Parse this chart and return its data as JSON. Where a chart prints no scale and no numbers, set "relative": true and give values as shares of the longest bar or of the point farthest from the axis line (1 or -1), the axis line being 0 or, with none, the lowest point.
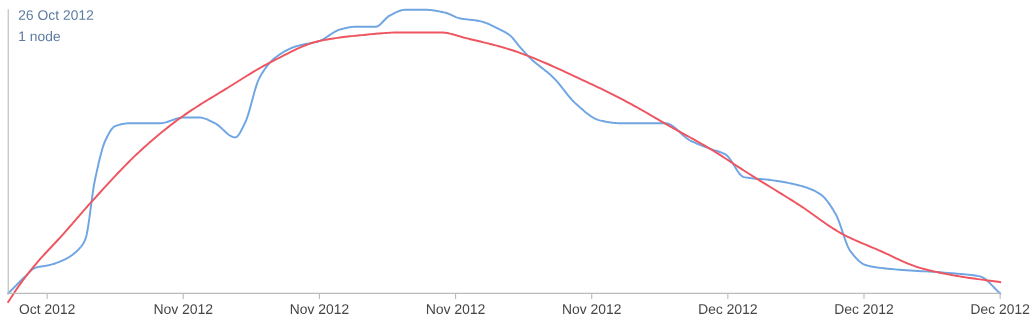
{
  "chart_data": {
    "type": "line",
    "relative": true,
    "annotations": [
      "26 Oct 2012",
      "1 node"
    ],
    "xlim": [
      "2012-10-26",
      "2012-12-16"
    ],
    "xticks": [
      {
        "value": "2012-10-28",
        "label": "Oct 2012"
      },
      {
        "value": "2012-11-04",
        "label": "Nov 2012"
      },
      {
        "value": "2012-11-11",
        "label": "Nov 2012"
      },
      {
        "value": "2012-11-18",
        "label": "Nov 2012"
      },
      {
        "value": "2012-11-25",
        "label": "Nov 2012"
      },
      {
        "value": "2012-12-02",
        "label": "Dec 2012"
      },
      {
        "value": "2012-12-09",
        "label": "Dec 2012"
      },
      {
        "value": "2012-12-16",
        "label": "Dec 2012"
      }
    ],
    "grid": false,
    "legend": false,
    "marker": "none",
    "line_style": "solid",
    "series": [
      {
        "color": "#6fa5e3",
        "x": [
          "2012-10-26T00:00",
          "2012-10-26T21:00",
          "2012-10-27T09:00",
          "2012-10-28T03:00",
          "2012-10-28T22:00",
          "2012-10-29T13:00",
          "2012-10-29T23:00",
          "2012-10-30T11:00",
          "2012-10-31T00:00",
          "2012-10-31T12:00",
          "2012-11-01T06:00",
          "2012-11-02T19:00",
          "2012-11-04T00:00",
          "2012-11-04T20:00",
          "2012-11-05T15:00",
          "2012-11-06T16:00",
          "2012-11-07T04:00",
          "2012-11-07T22:00",
          "2012-11-08T17:00",
          "2012-11-09T18:00",
          "2012-11-11T00:00",
          "2012-11-12T01:00",
          "2012-11-12T20:00",
          "2012-11-13T21:00",
          "2012-11-14T15:00",
          "2012-11-15T10:00",
          "2012-11-16T11:00",
          "2012-11-17T11:00",
          "2012-11-18T05:00",
          "2012-11-19T06:00",
          "2012-11-20T07:00",
          "2012-11-20T19:00",
          "2012-11-21T07:00",
          "2012-11-21T20:00",
          "2012-11-23T01:00",
          "2012-11-24T04:00",
          "2012-11-25T10:00",
          "2012-11-26T11:00",
          "2012-11-28T19:00",
          "2012-11-30T01:00",
          "2012-12-01T02:00",
          "2012-12-01T21:00",
          "2012-12-02T20:00",
          "2012-12-04T04:00",
          "2012-12-05T17:00",
          "2012-12-06T18:00",
          "2012-12-07T13:00",
          "2012-12-08T07:00",
          "2012-12-09T02:00",
          "2012-12-09T20:00",
          "2012-12-13T17:00",
          "2012-12-14T23:00",
          "2012-12-16T00:00"
        ],
        "values": [
          0,
          0.06,
          0.09,
          0.1,
          0.12,
          0.15,
          0.19,
          0.4,
          0.54,
          0.59,
          0.6,
          0.6,
          0.62,
          0.62,
          0.6,
          0.55,
          0.6,
          0.76,
          0.83,
          0.87,
          0.89,
          0.93,
          0.94,
          0.94,
          0.98,
          1.0,
          1.0,
          0.99,
          0.97,
          0.96,
          0.93,
          0.91,
          0.87,
          0.83,
          0.76,
          0.67,
          0.61,
          0.6,
          0.6,
          0.54,
          0.51,
          0.49,
          0.41,
          0.4,
          0.38,
          0.35,
          0.28,
          0.15,
          0.1,
          0.09,
          0.07,
          0.06,
          0
        ]
      },
      {
        "color": "#ee5560",
        "x": [
          "2012-10-26T00:00",
          "2012-10-26T14:00",
          "2012-10-27T12:00",
          "2012-10-28T17:00",
          "2012-10-30T09:00",
          "2012-11-01T18:00",
          "2012-11-03T21:00",
          "2012-11-06T04:00",
          "2012-11-08T15:00",
          "2012-11-11T00:00",
          "2012-11-13T02:00",
          "2012-11-15T03:00",
          "2012-11-17T06:00",
          "2012-11-18T13:00",
          "2012-11-20T19:00",
          "2012-11-24T22:00",
          "2012-11-26T23:00",
          "2012-11-29T00:00",
          "2012-12-01T02:00",
          "2012-12-03T03:00",
          "2012-12-05T17:00",
          "2012-12-07T21:00",
          "2012-12-09T20:00",
          "2012-12-11T21:00",
          "2012-12-13T22:00",
          "2012-12-16T00:00"
        ],
        "values": [
          -0.03,
          0.03,
          0.11,
          0.2,
          0.33,
          0.5,
          0.62,
          0.72,
          0.82,
          0.89,
          0.91,
          0.92,
          0.92,
          0.9,
          0.86,
          0.74,
          0.67,
          0.59,
          0.51,
          0.42,
          0.31,
          0.21,
          0.15,
          0.09,
          0.06,
          0.04
        ]
      }
    ]
  }
}
